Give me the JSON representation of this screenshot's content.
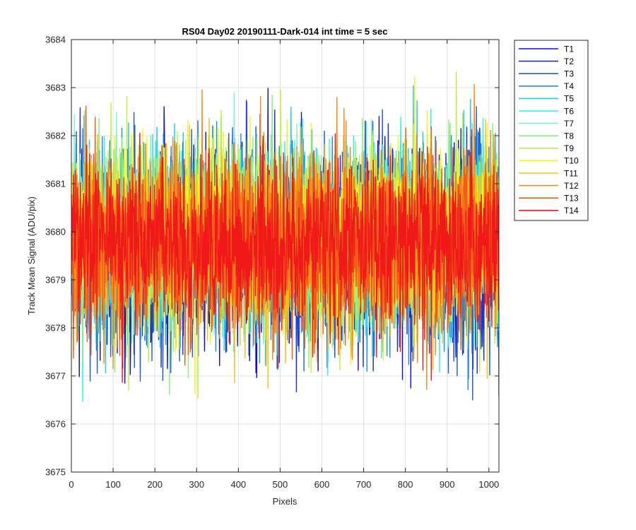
{
  "chart_data": {
    "type": "line",
    "title": "RS04 Day02 20190111-Dark-014 int time = 5 sec",
    "xlabel": "Pixels",
    "ylabel": "Track Mean Signal (ADU/pix)",
    "xlim": [
      0,
      1024
    ],
    "ylim": [
      3675,
      3684
    ],
    "xticks": [
      0,
      100,
      200,
      300,
      400,
      500,
      600,
      700,
      800,
      900,
      1000
    ],
    "yticks": [
      3675,
      3676,
      3677,
      3678,
      3679,
      3680,
      3681,
      3682,
      3683,
      3684
    ],
    "grid": true,
    "legend_position": "outside-top-right",
    "x_range_per_series": [
      1,
      1024
    ],
    "series": [
      {
        "name": "T1",
        "color": "#1414b4",
        "mean": 3679.6,
        "std": 1.05
      },
      {
        "name": "T2",
        "color": "#1a2fd8",
        "mean": 3679.6,
        "std": 1.0
      },
      {
        "name": "T3",
        "color": "#1f5ad9",
        "mean": 3679.7,
        "std": 0.97
      },
      {
        "name": "T4",
        "color": "#1b8fe0",
        "mean": 3679.8,
        "std": 0.95
      },
      {
        "name": "T5",
        "color": "#20c7ee",
        "mean": 3679.9,
        "std": 0.95
      },
      {
        "name": "T6",
        "color": "#34ecec",
        "mean": 3679.9,
        "std": 0.94
      },
      {
        "name": "T7",
        "color": "#7df0c6",
        "mean": 3679.9,
        "std": 0.93
      },
      {
        "name": "T8",
        "color": "#86f07a",
        "mean": 3679.9,
        "std": 0.93
      },
      {
        "name": "T9",
        "color": "#c0f03c",
        "mean": 3679.9,
        "std": 0.92
      },
      {
        "name": "T10",
        "color": "#f5f21a",
        "mean": 3679.9,
        "std": 0.92
      },
      {
        "name": "T11",
        "color": "#f5c216",
        "mean": 3679.8,
        "std": 0.91
      },
      {
        "name": "T12",
        "color": "#f98816",
        "mean": 3679.8,
        "std": 0.91
      },
      {
        "name": "T13",
        "color": "#f65a18",
        "mean": 3679.7,
        "std": 0.9
      },
      {
        "name": "T14",
        "color": "#f01818",
        "mean": 3679.8,
        "std": 0.88
      }
    ]
  }
}
